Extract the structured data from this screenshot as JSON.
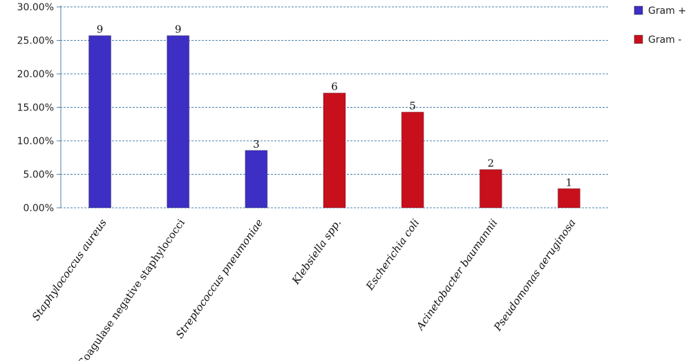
{
  "chart_data": {
    "type": "bar",
    "categories": [
      "Staphylococcus aureus",
      "Coagulase negative staphylococci",
      "Streptococcus pneumoniae",
      "Klebsiella spp.",
      "Escherichia coli",
      "Acinetobacter baumannii",
      "Pseudomonas aeruginosa"
    ],
    "italic_categories": [
      true,
      false,
      true,
      true,
      true,
      true,
      true
    ],
    "values": [
      0.2571,
      0.2571,
      0.0857,
      0.1714,
      0.1429,
      0.0571,
      0.0286
    ],
    "data_labels": [
      "9",
      "9",
      "3",
      "6",
      "5",
      "2",
      "1"
    ],
    "groups": [
      "Gram +",
      "Gram +",
      "Gram +",
      "Gram -",
      "Gram -",
      "Gram -",
      "Gram -"
    ],
    "series": [
      {
        "name": "Gram +",
        "color": "#3d2fc4"
      },
      {
        "name": "Gram -",
        "color": "#c8101c"
      }
    ],
    "yticks": [
      "0.00%",
      "5.00%",
      "10.00%",
      "15.00%",
      "20.00%",
      "25.00%",
      "30.00%"
    ],
    "ylim": [
      0,
      0.3
    ],
    "grid": true,
    "legend_position": "right",
    "title": "",
    "xlabel": "",
    "ylabel": ""
  }
}
